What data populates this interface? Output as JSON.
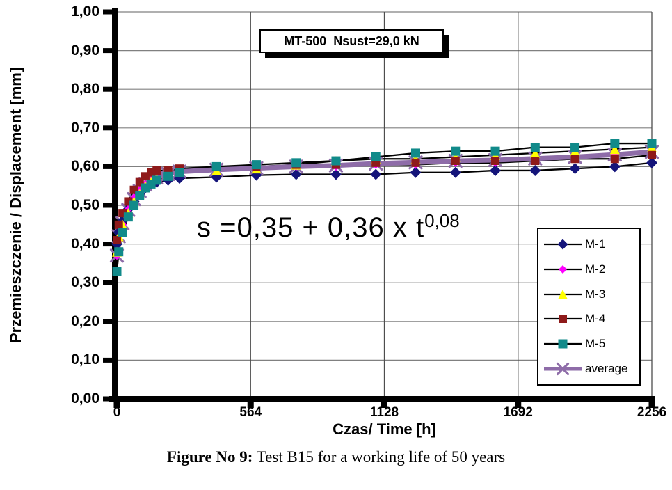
{
  "figure": {
    "title_box": "MT-500  Nsust=29,0 kN",
    "equation_base": "s =0,35 + 0,36 x t",
    "equation_exponent": "0,08",
    "caption_label": "Figure No 9:",
    "caption_text": " Test B15 for a working life of 50 years"
  },
  "chart_data": {
    "type": "line",
    "title": "MT-500  Nsust=29,0 kN",
    "xlabel": "Czas/ Time [h]",
    "ylabel": "Przemieszczenie / Displacement [mm]",
    "xlim": [
      0,
      2256
    ],
    "ylim": [
      0.0,
      1.0
    ],
    "grid": true,
    "legend_position": "inside-right",
    "annotation": "s =0,35 + 0,36 x t^0,08",
    "x_tick_values": [
      0,
      564,
      1128,
      1692,
      2256
    ],
    "x_tick_labels": [
      "0",
      "564",
      "1128",
      "1692",
      "2256"
    ],
    "y_tick_values": [
      1.0,
      0.9,
      0.8,
      0.7,
      0.6,
      0.5,
      0.4,
      0.3,
      0.2,
      0.1,
      0.0
    ],
    "y_tick_labels": [
      "1,00",
      "0,90",
      "0,80",
      "0,70",
      "0,60",
      "0,50",
      "0,40",
      "0,30",
      "0,20",
      "0,10",
      "0,00"
    ],
    "x": [
      0,
      8,
      24,
      48,
      72,
      96,
      120,
      144,
      168,
      216,
      264,
      420,
      588,
      756,
      924,
      1092,
      1260,
      1428,
      1596,
      1764,
      1932,
      2100,
      2256
    ],
    "series": [
      {
        "name": "M-1",
        "marker": "diamond",
        "marker_color": "#14147a",
        "line_color": "#000000",
        "line_width": 2.3,
        "marker_size": 8,
        "values": [
          0.4,
          0.43,
          0.46,
          0.49,
          0.51,
          0.53,
          0.545,
          0.555,
          0.56,
          0.565,
          0.57,
          0.573,
          0.578,
          0.58,
          0.58,
          0.58,
          0.585,
          0.585,
          0.59,
          0.59,
          0.595,
          0.6,
          0.61
        ]
      },
      {
        "name": "M-2",
        "marker": "diamond",
        "marker_color": "#ff00ff",
        "line_color": "#000000",
        "line_width": 2.3,
        "marker_size": 6,
        "values": [
          0.37,
          0.41,
          0.45,
          0.49,
          0.52,
          0.54,
          0.555,
          0.565,
          0.575,
          0.585,
          0.59,
          0.595,
          0.598,
          0.6,
          0.6,
          0.605,
          0.605,
          0.61,
          0.61,
          0.615,
          0.62,
          0.63,
          0.64
        ]
      },
      {
        "name": "M-3",
        "marker": "triangle",
        "marker_color": "#ffff00",
        "line_color": "#000000",
        "line_width": 2.3,
        "marker_size": 7,
        "values": [
          0.38,
          0.42,
          0.45,
          0.48,
          0.51,
          0.53,
          0.55,
          0.56,
          0.57,
          0.58,
          0.585,
          0.59,
          0.595,
          0.605,
          0.615,
          0.62,
          0.62,
          0.625,
          0.63,
          0.635,
          0.64,
          0.645,
          0.65
        ]
      },
      {
        "name": "M-4",
        "marker": "square",
        "marker_color": "#8e1a1a",
        "line_color": "#000000",
        "line_width": 2.3,
        "marker_size": 6,
        "values": [
          0.41,
          0.45,
          0.48,
          0.51,
          0.54,
          0.56,
          0.575,
          0.585,
          0.59,
          0.59,
          0.595,
          0.6,
          0.6,
          0.605,
          0.605,
          0.61,
          0.61,
          0.615,
          0.615,
          0.615,
          0.62,
          0.62,
          0.63
        ]
      },
      {
        "name": "M-5",
        "marker": "square",
        "marker_color": "#118a8a",
        "line_color": "#000000",
        "line_width": 2.3,
        "marker_size": 6.5,
        "values": [
          0.33,
          0.38,
          0.43,
          0.47,
          0.5,
          0.525,
          0.545,
          0.555,
          0.565,
          0.575,
          0.585,
          0.6,
          0.605,
          0.61,
          0.615,
          0.625,
          0.635,
          0.64,
          0.64,
          0.65,
          0.65,
          0.66,
          0.66
        ]
      },
      {
        "name": "average",
        "marker": "x",
        "marker_color": "#8e6ca8",
        "line_color": "#8e6ca8",
        "line_width": 7,
        "marker_size": 8.5,
        "values": [
          0.37,
          0.42,
          0.454,
          0.488,
          0.516,
          0.537,
          0.554,
          0.564,
          0.572,
          0.581,
          0.587,
          0.592,
          0.596,
          0.6,
          0.603,
          0.608,
          0.611,
          0.615,
          0.617,
          0.621,
          0.625,
          0.631,
          0.638
        ]
      }
    ],
    "colors": {
      "axis": "#000000",
      "h_grid": "#808080",
      "v_grid": "#4d4d4d",
      "average_line": "#8e6ca8"
    }
  }
}
